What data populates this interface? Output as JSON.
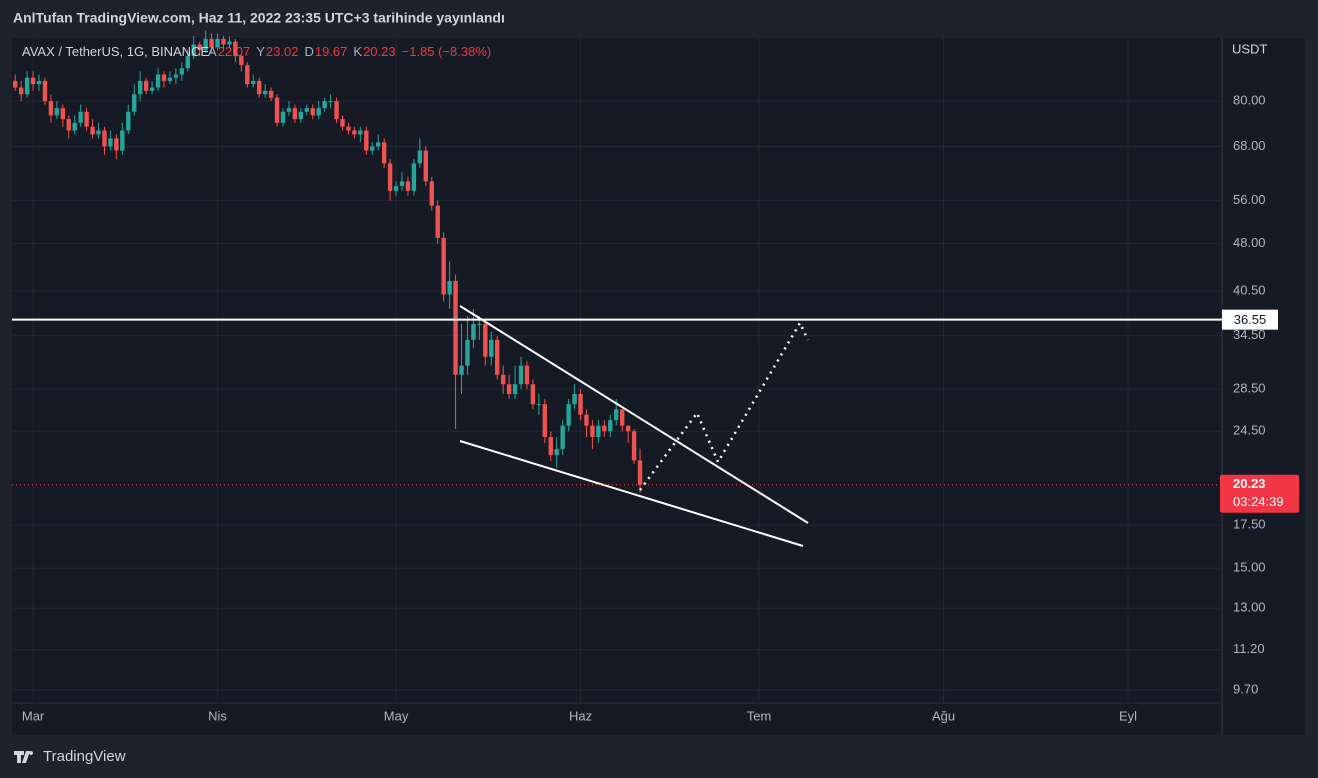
{
  "header": {
    "published": "AnlTufan TradingView.com, Haz 11, 2022 23:35 UTC+3 tarihinde yayınlandı"
  },
  "footer": {
    "brand": "TradingView"
  },
  "chart_data": {
    "type": "candlestick",
    "symbol": "AVAX / TetherUS, 1G, BINANCE",
    "legend": [
      {
        "key": "A",
        "value": 22.07
      },
      {
        "key": "Y",
        "value": 23.02
      },
      {
        "key": "D",
        "value": 19.67
      },
      {
        "key": "K",
        "value": 20.23
      }
    ],
    "change": "−1.85 (−8.38%)",
    "currency": "USDT",
    "up_color": "#26a69a",
    "down_color": "#ef5350",
    "log_scale": true,
    "grid": true,
    "xlim": [
      -0.54,
      202.8
    ],
    "xticks": [
      {
        "value": 3,
        "label": "Mar"
      },
      {
        "value": 34,
        "label": "Nis"
      },
      {
        "value": 64,
        "label": "May"
      },
      {
        "value": 95,
        "label": "Haz"
      },
      {
        "value": 125,
        "label": "Tem"
      },
      {
        "value": 156,
        "label": "Ağu"
      },
      {
        "value": 187,
        "label": "Eyl"
      }
    ],
    "ylim": [
      8.25,
      100.3
    ],
    "yticks": [
      {
        "value": 80,
        "label": "80.00"
      },
      {
        "value": 68,
        "label": "68.00"
      },
      {
        "value": 56,
        "label": "56.00"
      },
      {
        "value": 48,
        "label": "48.00"
      },
      {
        "value": 40.5,
        "label": "40.50"
      },
      {
        "value": 34.5,
        "label": "34.50"
      },
      {
        "value": 28.5,
        "label": "28.50"
      },
      {
        "value": 24.5,
        "label": "24.50"
      },
      {
        "value": 17.5,
        "label": "17.50"
      },
      {
        "value": 15,
        "label": "15.00"
      },
      {
        "value": 13,
        "label": "13.00"
      },
      {
        "value": 11.2,
        "label": "11.20"
      },
      {
        "value": 9.7,
        "label": "9.70"
      }
    ],
    "hline": {
      "value": 36.55,
      "label": "36.55"
    },
    "last_price": {
      "value": 20.23,
      "label": "20.23",
      "countdown": "03:24:39"
    },
    "open": [
      86,
      84,
      82,
      87,
      85,
      86,
      80,
      76,
      78,
      75,
      72,
      74,
      77,
      73,
      71,
      72,
      68,
      70,
      67,
      72,
      77,
      82,
      86,
      83,
      84,
      88,
      86,
      87,
      88,
      90,
      94,
      98,
      96,
      100,
      97,
      100,
      98,
      99,
      94,
      91,
      85,
      86,
      82,
      83,
      81,
      74,
      77,
      78,
      75,
      77,
      78,
      76,
      78,
      80,
      80,
      75,
      73,
      72,
      71,
      72,
      67,
      68,
      69,
      64,
      58,
      59,
      60,
      58,
      64,
      67,
      60,
      55,
      49,
      40,
      42,
      30,
      31,
      34,
      36,
      36,
      32,
      34,
      30,
      29,
      28,
      29,
      31,
      29,
      27,
      27,
      24,
      22.5,
      23,
      25,
      27,
      28,
      26,
      25,
      24,
      25,
      24.5,
      25.5,
      26.5,
      25,
      24.5,
      22.07
    ],
    "high": [
      88,
      86,
      89,
      89,
      88,
      87,
      82,
      80,
      79,
      76,
      76,
      79,
      78,
      75,
      74,
      73,
      72,
      71,
      74,
      79,
      85,
      89,
      87,
      86,
      90,
      89,
      89,
      90,
      92,
      96,
      101,
      99,
      103,
      102,
      102,
      101,
      101,
      100,
      95,
      92,
      88,
      87,
      85,
      84,
      82,
      78,
      80,
      79,
      78,
      79,
      79,
      80,
      81,
      82,
      81,
      76,
      74,
      73,
      73,
      73,
      69,
      71,
      70,
      65,
      60,
      62,
      61,
      65,
      70,
      68,
      61,
      56,
      50,
      45,
      43,
      36,
      37,
      38,
      37,
      36.5,
      35,
      34.5,
      31,
      30,
      31,
      32,
      31.5,
      29.5,
      28,
      27.5,
      24.5,
      24,
      25.5,
      27.5,
      29,
      28.5,
      26.5,
      25.5,
      25.5,
      25.5,
      26,
      27.5,
      26.5,
      25,
      24.7,
      23.02
    ],
    "low": [
      83,
      80,
      81,
      83,
      83,
      79,
      74,
      75,
      73,
      70,
      71,
      73,
      72,
      70,
      70,
      66,
      67,
      65,
      66,
      71,
      76,
      80,
      82,
      82,
      83,
      84,
      85,
      85,
      86,
      89,
      93,
      94,
      95,
      95,
      96,
      96,
      97,
      92,
      89,
      84,
      84,
      81,
      81,
      80,
      73,
      73,
      76,
      74,
      74,
      76,
      75,
      75,
      77,
      78,
      74,
      72,
      71,
      70,
      69,
      66,
      66,
      67,
      63,
      56,
      57,
      58,
      57,
      57,
      63,
      59,
      54,
      48,
      39,
      38,
      24.7,
      28,
      30,
      33,
      34,
      31,
      31,
      29.5,
      28,
      27.5,
      27.5,
      28.5,
      28.5,
      26.5,
      26,
      23.5,
      22,
      21.5,
      22.5,
      24.5,
      26.5,
      25.5,
      24,
      23,
      23.5,
      24,
      24,
      25,
      24.5,
      23.5,
      21.8,
      19.67
    ],
    "close": [
      84,
      82,
      87,
      85,
      86,
      80,
      76,
      78,
      75,
      72,
      74,
      77,
      73,
      71,
      72,
      68,
      70,
      67,
      72,
      77,
      82,
      86,
      83,
      84,
      88,
      86,
      87,
      88,
      90,
      94,
      98,
      96,
      100,
      97,
      100,
      98,
      99,
      94,
      91,
      85,
      86,
      82,
      83,
      81,
      74,
      77,
      78,
      75,
      77,
      78,
      76,
      78,
      80,
      80,
      75,
      73,
      72,
      71,
      72,
      67,
      68,
      69,
      64,
      58,
      59,
      60,
      58,
      64,
      67,
      60,
      55,
      49,
      40,
      42,
      30,
      31,
      34,
      36,
      36,
      32,
      34,
      30,
      29,
      28,
      29,
      31,
      29,
      27,
      27,
      24,
      22.5,
      23,
      25,
      27,
      28,
      26,
      25,
      24,
      25,
      24.5,
      25.5,
      26.5,
      25,
      24.5,
      22.07,
      20.23
    ]
  }
}
